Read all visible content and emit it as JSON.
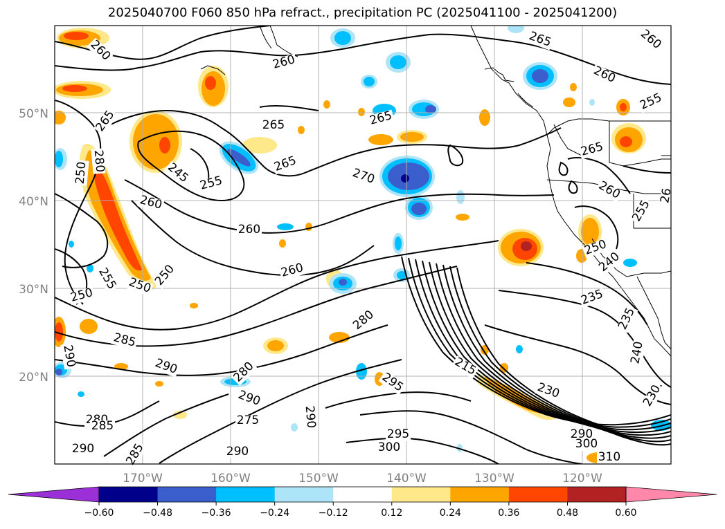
{
  "title": "2025040700 F060 850 hPa refract., precipitation PC (2025041100 - 2025041200)",
  "map": {
    "lon_range": [
      -180,
      -110
    ],
    "lat_range": [
      10,
      60
    ],
    "lat_ticks": [
      "20°N",
      "30°N",
      "40°N",
      "50°N"
    ],
    "lon_ticks": [
      "170°W",
      "160°W",
      "150°W",
      "140°W",
      "130°W",
      "120°W"
    ],
    "contour_labels": [
      "260",
      "260",
      "265",
      "260",
      "260",
      "255",
      "265",
      "265",
      "265",
      "265",
      "270",
      "280",
      "250",
      "245",
      "255",
      "260",
      "260",
      "260",
      "255",
      "250",
      "250",
      "250",
      "280",
      "285",
      "290",
      "290",
      "280",
      "290",
      "280",
      "290",
      "285",
      "295",
      "275",
      "290",
      "295",
      "300",
      "290",
      "285",
      "215",
      "230",
      "290",
      "300",
      "310",
      "235",
      "235",
      "240",
      "230.",
      "265",
      "260",
      "255",
      "250",
      "240",
      "26"
    ]
  },
  "colorbar": {
    "colors": [
      "#9b30d9",
      "#00008b",
      "#3a5fcd",
      "#00bfff",
      "#aee4f8",
      "#ffffff",
      "#ffe88a",
      "#ffa500",
      "#ff4500",
      "#b22222",
      "#ff88aa"
    ],
    "labels": [
      "−0.60",
      "−0.48",
      "−0.36",
      "−0.24",
      "−0.12",
      "0.12",
      "0.24",
      "0.36",
      "0.48",
      "0.60"
    ]
  }
}
